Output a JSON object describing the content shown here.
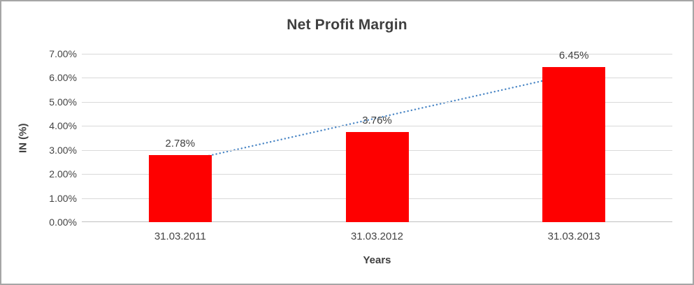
{
  "chart_data": {
    "type": "bar",
    "title": "Net Profit Margin",
    "categories": [
      "31.03.2011",
      "31.03.2012",
      "31.03.2013"
    ],
    "values": [
      2.78,
      3.76,
      6.45
    ],
    "value_labels": [
      "2.78%",
      "3.76%",
      "6.45%"
    ],
    "xlabel": "Years",
    "ylabel": "IN (%)",
    "ylim": [
      0,
      7
    ],
    "ytick_labels": [
      "0.00%",
      "1.00%",
      "2.00%",
      "3.00%",
      "4.00%",
      "5.00%",
      "6.00%",
      "7.00%"
    ],
    "grid": true,
    "legend": false,
    "bar_color": "#fe0000",
    "trendline": {
      "type": "linear",
      "style": "dotted",
      "color": "#4a86c5"
    }
  }
}
